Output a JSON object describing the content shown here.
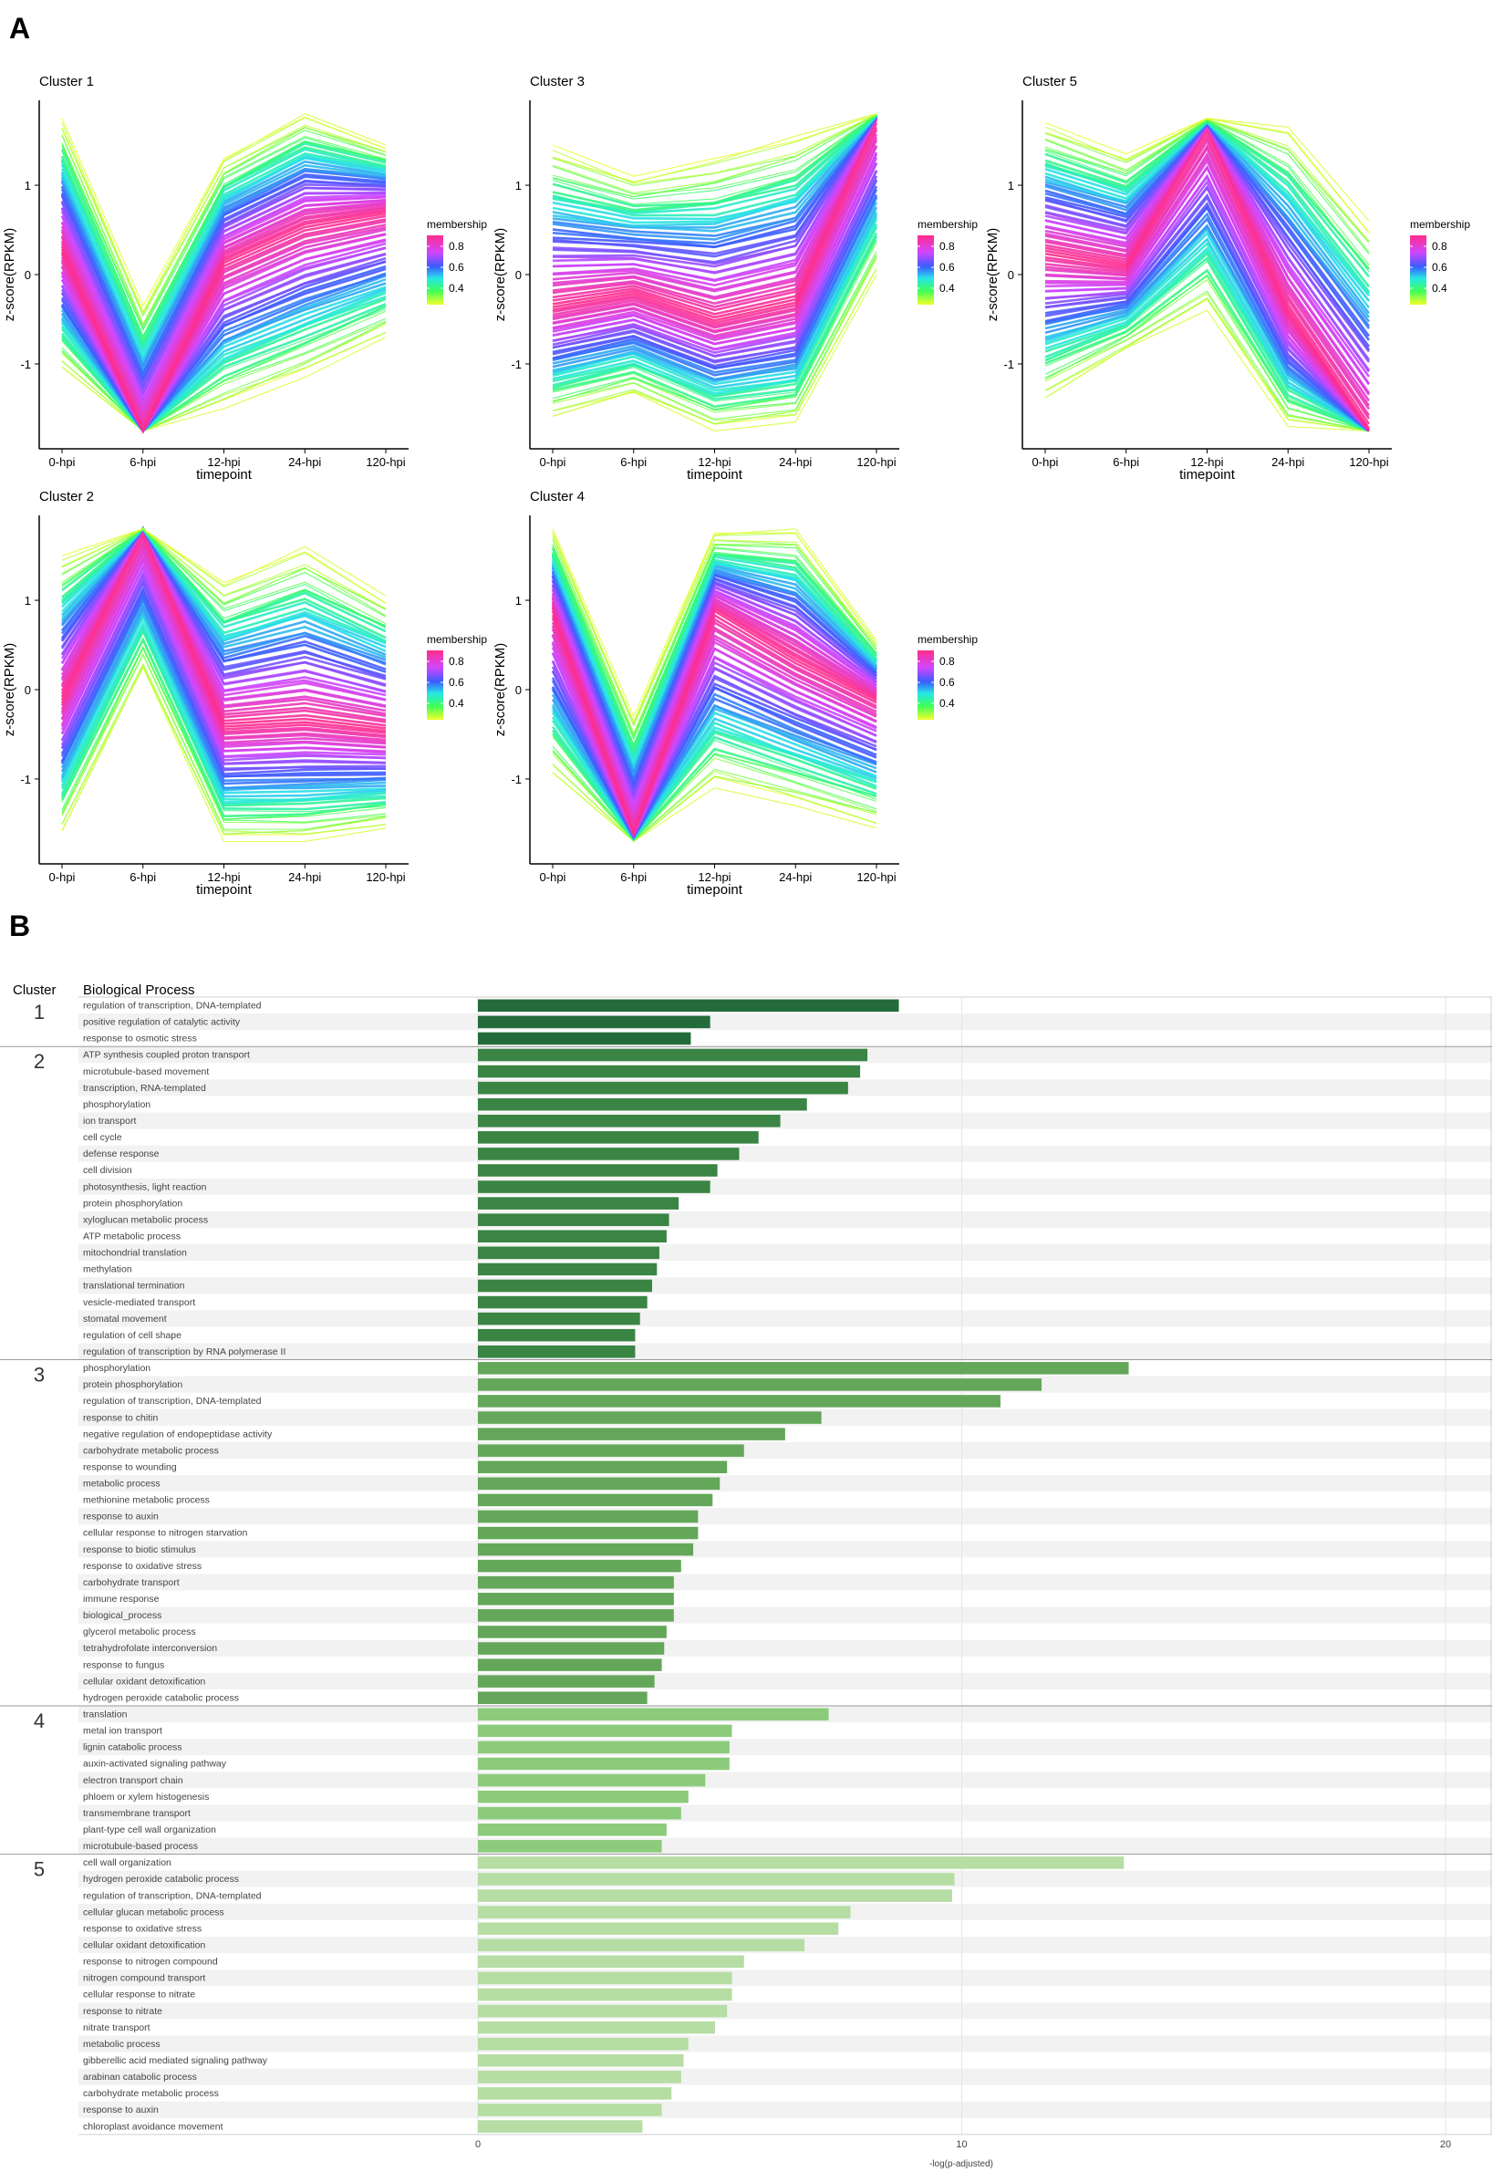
{
  "figure": {
    "panel_a_label": "A",
    "panel_b_label": "B"
  },
  "chart_data": [
    {
      "type": "line",
      "panel": "A",
      "title": "Cluster 1",
      "categories": [
        "0-hpi",
        "6-hpi",
        "12-hpi",
        "24-hpi",
        "120-hpi"
      ],
      "center": [
        0.3,
        -1.75,
        0.15,
        0.55,
        0.7
      ],
      "upper": [
        1.75,
        -0.35,
        1.3,
        1.8,
        1.45
      ],
      "lower": [
        -1.05,
        -1.75,
        -1.5,
        -1.15,
        -0.7
      ],
      "xlabel": "timepoint",
      "ylabel": "z-score(RPKM)",
      "ylim": [
        -1.95,
        1.95
      ],
      "yticks": [
        -1,
        0,
        1
      ],
      "legend": {
        "title": "membership",
        "labels": [
          "0.8",
          "0.6",
          "0.4"
        ],
        "position": "right"
      }
    },
    {
      "type": "line",
      "panel": "A",
      "title": "Cluster 3",
      "categories": [
        "0-hpi",
        "6-hpi",
        "12-hpi",
        "24-hpi",
        "120-hpi"
      ],
      "center": [
        -0.35,
        -0.2,
        -0.5,
        -0.3,
        1.75
      ],
      "upper": [
        1.45,
        1.1,
        1.3,
        1.55,
        1.8
      ],
      "lower": [
        -1.6,
        -1.35,
        -1.75,
        -1.65,
        0.0
      ],
      "xlabel": "timepoint",
      "ylabel": "z-score(RPKM)",
      "ylim": [
        -1.95,
        1.95
      ],
      "yticks": [
        -1,
        0,
        1
      ],
      "legend": {
        "title": "membership",
        "labels": [
          "0.8",
          "0.6",
          "0.4"
        ],
        "position": "right"
      }
    },
    {
      "type": "line",
      "panel": "A",
      "title": "Cluster 5",
      "categories": [
        "0-hpi",
        "6-hpi",
        "12-hpi",
        "24-hpi",
        "120-hpi"
      ],
      "center": [
        0.25,
        0.1,
        1.65,
        -0.4,
        -1.75
      ],
      "upper": [
        1.7,
        1.35,
        1.75,
        1.65,
        0.6
      ],
      "lower": [
        -1.4,
        -0.85,
        -0.4,
        -1.7,
        -1.75
      ],
      "xlabel": "timepoint",
      "ylabel": "z-score(RPKM)",
      "ylim": [
        -1.95,
        1.95
      ],
      "yticks": [
        -1,
        0,
        1
      ],
      "legend": {
        "title": "membership",
        "labels": [
          "0.8",
          "0.6",
          "0.4"
        ],
        "position": "right"
      }
    },
    {
      "type": "line",
      "panel": "A",
      "title": "Cluster 2",
      "categories": [
        "0-hpi",
        "6-hpi",
        "12-hpi",
        "24-hpi",
        "120-hpi"
      ],
      "center": [
        -0.1,
        1.8,
        -0.4,
        -0.35,
        -0.45
      ],
      "upper": [
        1.5,
        1.8,
        1.2,
        1.6,
        1.05
      ],
      "lower": [
        -1.6,
        0.2,
        -1.7,
        -1.7,
        -1.55
      ],
      "xlabel": "timepoint",
      "ylabel": "z-score(RPKM)",
      "ylim": [
        -1.95,
        1.95
      ],
      "yticks": [
        -1,
        0,
        1
      ],
      "legend": {
        "title": "membership",
        "labels": [
          "0.8",
          "0.6",
          "0.4"
        ],
        "position": "right"
      }
    },
    {
      "type": "line",
      "panel": "A",
      "title": "Cluster 4",
      "categories": [
        "0-hpi",
        "6-hpi",
        "12-hpi",
        "24-hpi",
        "120-hpi"
      ],
      "center": [
        0.9,
        -1.6,
        0.9,
        0.35,
        -0.1
      ],
      "upper": [
        1.8,
        -0.3,
        1.75,
        1.8,
        0.55
      ],
      "lower": [
        -0.95,
        -1.7,
        -1.1,
        -1.3,
        -1.55
      ],
      "xlabel": "timepoint",
      "ylabel": "z-score(RPKM)",
      "ylim": [
        -1.95,
        1.95
      ],
      "yticks": [
        -1,
        0,
        1
      ],
      "legend": {
        "title": "membership",
        "labels": [
          "0.8",
          "0.6",
          "0.4"
        ],
        "position": "right"
      }
    },
    {
      "type": "bar",
      "panel": "B",
      "orientation": "horizontal",
      "col_header_cluster": "Cluster",
      "col_header_process": "Biological Process",
      "xlabel": "-log(p-adjusted)",
      "xlim": [
        0,
        21
      ],
      "xticks": [
        0,
        10,
        20
      ],
      "groups": [
        {
          "cluster": "1",
          "color": "#236b3b",
          "items": [
            {
              "label": "regulation of transcription, DNA-templated",
              "value": 8.7
            },
            {
              "label": "positive regulation of catalytic activity",
              "value": 4.8
            },
            {
              "label": "response to osmotic stress",
              "value": 4.4
            }
          ]
        },
        {
          "cluster": "2",
          "color": "#3a8444",
          "items": [
            {
              "label": "ATP synthesis coupled proton transport",
              "value": 8.05
            },
            {
              "label": "microtubule-based movement",
              "value": 7.9
            },
            {
              "label": "transcription, RNA-templated",
              "value": 7.65
            },
            {
              "label": "phosphorylation",
              "value": 6.8
            },
            {
              "label": "ion transport",
              "value": 6.25
            },
            {
              "label": "cell cycle",
              "value": 5.8
            },
            {
              "label": "defense response",
              "value": 5.4
            },
            {
              "label": "cell division",
              "value": 4.95
            },
            {
              "label": "photosynthesis, light reaction",
              "value": 4.8
            },
            {
              "label": "protein phosphorylation",
              "value": 4.15
            },
            {
              "label": "xyloglucan metabolic process",
              "value": 3.95
            },
            {
              "label": "ATP metabolic process",
              "value": 3.9
            },
            {
              "label": "mitochondrial translation",
              "value": 3.75
            },
            {
              "label": "methylation",
              "value": 3.7
            },
            {
              "label": "translational termination",
              "value": 3.6
            },
            {
              "label": "vesicle-mediated transport",
              "value": 3.5
            },
            {
              "label": "stomatal movement",
              "value": 3.35
            },
            {
              "label": "regulation of cell shape",
              "value": 3.25
            },
            {
              "label": "regulation of transcription by RNA polymerase II",
              "value": 3.25
            }
          ]
        },
        {
          "cluster": "3",
          "color": "#64a75a",
          "items": [
            {
              "label": "phosphorylation",
              "value": 13.45
            },
            {
              "label": "protein phosphorylation",
              "value": 11.65
            },
            {
              "label": "regulation of transcription, DNA-templated",
              "value": 10.8
            },
            {
              "label": "response to chitin",
              "value": 7.1
            },
            {
              "label": "negative regulation of endopeptidase activity",
              "value": 6.35
            },
            {
              "label": "carbohydrate metabolic process",
              "value": 5.5
            },
            {
              "label": "response to wounding",
              "value": 5.15
            },
            {
              "label": "metabolic process",
              "value": 5.0
            },
            {
              "label": "methionine metabolic process",
              "value": 4.85
            },
            {
              "label": "response to auxin",
              "value": 4.55
            },
            {
              "label": "cellular response to nitrogen starvation",
              "value": 4.55
            },
            {
              "label": "response to biotic stimulus",
              "value": 4.45
            },
            {
              "label": "response to oxidative stress",
              "value": 4.2
            },
            {
              "label": "carbohydrate transport",
              "value": 4.05
            },
            {
              "label": "immune response",
              "value": 4.05
            },
            {
              "label": "biological_process",
              "value": 4.05
            },
            {
              "label": "glycerol metabolic process",
              "value": 3.9
            },
            {
              "label": "tetrahydrofolate interconversion",
              "value": 3.85
            },
            {
              "label": "response to fungus",
              "value": 3.8
            },
            {
              "label": "cellular oxidant detoxification",
              "value": 3.65
            },
            {
              "label": "hydrogen peroxide catabolic process",
              "value": 3.5
            }
          ]
        },
        {
          "cluster": "4",
          "color": "#8ccb7c",
          "items": [
            {
              "label": "translation",
              "value": 7.25
            },
            {
              "label": "metal ion transport",
              "value": 5.25
            },
            {
              "label": "lignin catabolic process",
              "value": 5.2
            },
            {
              "label": "auxin-activated signaling pathway",
              "value": 5.2
            },
            {
              "label": "electron transport chain",
              "value": 4.7
            },
            {
              "label": "phloem or xylem histogenesis",
              "value": 4.35
            },
            {
              "label": "transmembrane transport",
              "value": 4.2
            },
            {
              "label": "plant-type cell wall organization",
              "value": 3.9
            },
            {
              "label": "microtubule-based process",
              "value": 3.8
            }
          ]
        },
        {
          "cluster": "5",
          "color": "#b5dda4",
          "items": [
            {
              "label": "cell wall organization",
              "value": 13.35
            },
            {
              "label": "hydrogen peroxide catabolic process",
              "value": 9.85
            },
            {
              "label": "regulation of transcription, DNA-templated",
              "value": 9.8
            },
            {
              "label": "cellular glucan metabolic process",
              "value": 7.7
            },
            {
              "label": "response to oxidative stress",
              "value": 7.45
            },
            {
              "label": "cellular oxidant detoxification",
              "value": 6.75
            },
            {
              "label": "response to nitrogen compound",
              "value": 5.5
            },
            {
              "label": "nitrogen compound transport",
              "value": 5.25
            },
            {
              "label": "cellular response to nitrate",
              "value": 5.25
            },
            {
              "label": "response to nitrate",
              "value": 5.15
            },
            {
              "label": "nitrate transport",
              "value": 4.9
            },
            {
              "label": "metabolic process",
              "value": 4.35
            },
            {
              "label": "gibberellic acid mediated signaling pathway",
              "value": 4.25
            },
            {
              "label": "arabinan catabolic process",
              "value": 4.2
            },
            {
              "label": "carbohydrate metabolic process",
              "value": 4.0
            },
            {
              "label": "response to auxin",
              "value": 3.8
            },
            {
              "label": "chloroplast avoidance movement",
              "value": 3.4
            }
          ]
        }
      ]
    }
  ]
}
